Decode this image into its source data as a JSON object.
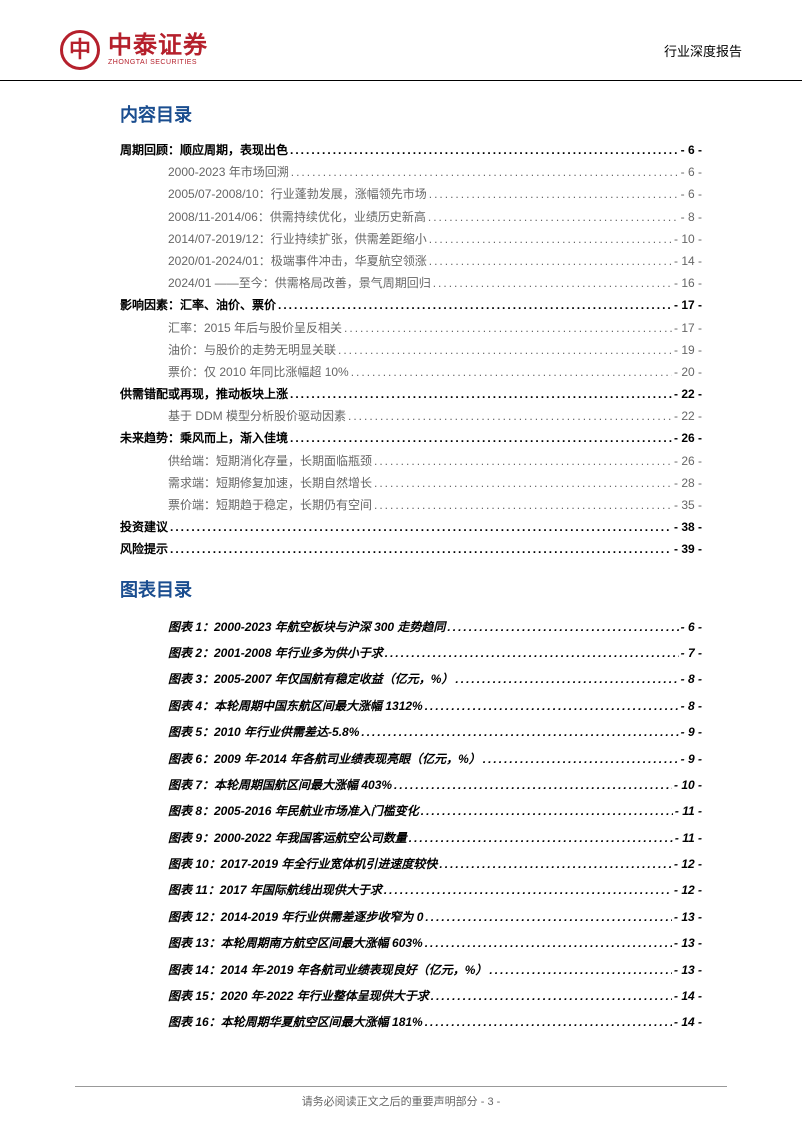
{
  "header": {
    "logo_cn": "中泰证券",
    "logo_en": "ZHONGTAI SECURITIES",
    "report_type": "行业深度报告"
  },
  "toc_title": "内容目录",
  "figures_title": "图表目录",
  "toc": [
    {
      "level": 1,
      "text": "周期回顾：顺应周期，表现出色",
      "page": "- 6 -"
    },
    {
      "level": 2,
      "text": "2000-2023 年市场回溯",
      "page": "- 6 -"
    },
    {
      "level": 2,
      "text": "2005/07-2008/10：行业蓬勃发展，涨幅领先市场",
      "page": "- 6 -"
    },
    {
      "level": 2,
      "text": "2008/11-2014/06：供需持续优化，业绩历史新高",
      "page": "- 8 -"
    },
    {
      "level": 2,
      "text": "2014/07-2019/12：行业持续扩张，供需差距缩小",
      "page": "- 10 -"
    },
    {
      "level": 2,
      "text": "2020/01-2024/01：极端事件冲击，华夏航空领涨",
      "page": "- 14 -"
    },
    {
      "level": 2,
      "text": "2024/01 ——至今：供需格局改善，景气周期回归",
      "page": "- 16 -"
    },
    {
      "level": 1,
      "text": "影响因素：汇率、油价、票价",
      "page": "- 17 -"
    },
    {
      "level": 2,
      "text": "汇率：2015 年后与股价呈反相关",
      "page": "- 17 -"
    },
    {
      "level": 2,
      "text": "油价：与股价的走势无明显关联",
      "page": "- 19 -"
    },
    {
      "level": 2,
      "text": "票价：仅 2010 年同比涨幅超 10%",
      "page": "- 20 -"
    },
    {
      "level": 1,
      "text": "供需错配或再现，推动板块上涨",
      "page": "- 22 -"
    },
    {
      "level": 2,
      "text": "基于 DDM 模型分析股价驱动因素",
      "page": "- 22 -"
    },
    {
      "level": 1,
      "text": "未来趋势：乘风而上，渐入佳境",
      "page": "- 26 -"
    },
    {
      "level": 2,
      "text": "供给端：短期消化存量，长期面临瓶颈",
      "page": "- 26 -"
    },
    {
      "level": 2,
      "text": "需求端：短期修复加速，长期自然增长",
      "page": "- 28 -"
    },
    {
      "level": 2,
      "text": "票价端：短期趋于稳定，长期仍有空间",
      "page": "- 35 -"
    },
    {
      "level": 1,
      "text": "投资建议",
      "page": "- 38 -"
    },
    {
      "level": 1,
      "text": "风险提示",
      "page": "- 39 -"
    }
  ],
  "figures": [
    {
      "text": "图表 1：2000-2023 年航空板块与沪深 300 走势趋同",
      "page": "- 6 -"
    },
    {
      "text": "图表 2：2001-2008 年行业多为供小于求",
      "page": "- 7 -"
    },
    {
      "text": "图表 3：2005-2007 年仅国航有稳定收益（亿元，%）",
      "page": "- 8 -"
    },
    {
      "text": "图表 4：本轮周期中国东航区间最大涨幅 1312%",
      "page": "- 8 -"
    },
    {
      "text": "图表 5：2010 年行业供需差达-5.8%",
      "page": "- 9 -"
    },
    {
      "text": "图表 6：2009 年-2014 年各航司业绩表现亮眼（亿元，%）",
      "page": "- 9 -"
    },
    {
      "text": "图表 7：本轮周期国航区间最大涨幅 403%",
      "page": "- 10 -"
    },
    {
      "text": "图表 8：2005-2016 年民航业市场准入门槛变化",
      "page": "- 11 -"
    },
    {
      "text": "图表 9：2000-2022 年我国客运航空公司数量",
      "page": "- 11 -"
    },
    {
      "text": "图表 10：2017-2019 年全行业宽体机引进速度较快",
      "page": "- 12 -"
    },
    {
      "text": "图表 11：2017 年国际航线出现供大于求",
      "page": "- 12 -"
    },
    {
      "text": "图表 12：2014-2019 年行业供需差逐步收窄为 0",
      "page": "- 13 -"
    },
    {
      "text": "图表 13：本轮周期南方航空区间最大涨幅 603%",
      "page": "- 13 -"
    },
    {
      "text": "图表 14：2014 年-2019 年各航司业绩表现良好（亿元，%）",
      "page": "- 13 -"
    },
    {
      "text": "图表 15：2020 年-2022 年行业整体呈现供大于求",
      "page": "- 14 -"
    },
    {
      "text": "图表 16：本轮周期华夏航空区间最大涨幅 181%",
      "page": "- 14 -"
    }
  ],
  "footer": {
    "text": "请务必阅读正文之后的重要声明部分",
    "page": "- 3 -"
  }
}
